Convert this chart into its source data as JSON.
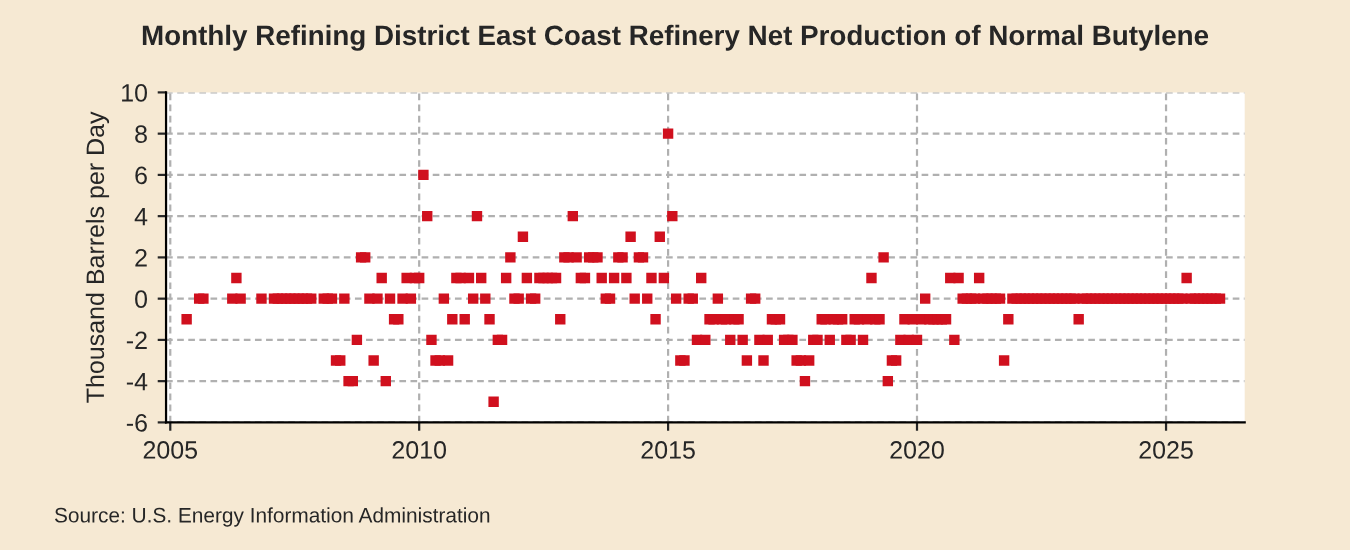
{
  "chart_data": {
    "type": "scatter",
    "title": "Monthly Refining District East Coast Refinery Net Production of Normal Butylene",
    "ylabel": "Thousand Barrels per Day",
    "annotations": [
      "Source: U.S. Energy Information Administration"
    ],
    "x": [
      "2005-05",
      "2005-06",
      "2005-07",
      "2005-08",
      "2005-09",
      "2005-10",
      "2005-11",
      "2005-12",
      "2006-01",
      "2006-02",
      "2006-03",
      "2006-04",
      "2006-05",
      "2006-06",
      "2006-07",
      "2006-08",
      "2006-09",
      "2006-10",
      "2006-11",
      "2006-12",
      "2007-01",
      "2007-02",
      "2007-03",
      "2007-04",
      "2007-05",
      "2007-06",
      "2007-07",
      "2007-08",
      "2007-09",
      "2007-10",
      "2007-11",
      "2007-12",
      "2008-01",
      "2008-02",
      "2008-03",
      "2008-04",
      "2008-05",
      "2008-06",
      "2008-07",
      "2008-08",
      "2008-09",
      "2008-10",
      "2008-11",
      "2008-12",
      "2009-01",
      "2009-02",
      "2009-03",
      "2009-04",
      "2009-05",
      "2009-06",
      "2009-07",
      "2009-08",
      "2009-09",
      "2009-10",
      "2009-11",
      "2009-12",
      "2010-01",
      "2010-02",
      "2010-03",
      "2010-04",
      "2010-05",
      "2010-06",
      "2010-07",
      "2010-08",
      "2010-09",
      "2010-10",
      "2010-11",
      "2010-12",
      "2011-01",
      "2011-02",
      "2011-03",
      "2011-04",
      "2011-05",
      "2011-06",
      "2011-07",
      "2011-08",
      "2011-09",
      "2011-10",
      "2011-11",
      "2011-12",
      "2012-01",
      "2012-02",
      "2012-03",
      "2012-04",
      "2012-05",
      "2012-06",
      "2012-07",
      "2012-08",
      "2012-09",
      "2012-10",
      "2012-11",
      "2012-12",
      "2013-01",
      "2013-02",
      "2013-03",
      "2013-04",
      "2013-05",
      "2013-06",
      "2013-07",
      "2013-08",
      "2013-09",
      "2013-10",
      "2013-11",
      "2013-12",
      "2014-01",
      "2014-02",
      "2014-03",
      "2014-04",
      "2014-05",
      "2014-06",
      "2014-07",
      "2014-08",
      "2014-09",
      "2014-10",
      "2014-11",
      "2014-12",
      "2015-01",
      "2015-02",
      "2015-03",
      "2015-04",
      "2015-05",
      "2015-06",
      "2015-07",
      "2015-08",
      "2015-09",
      "2015-10",
      "2015-11",
      "2015-12",
      "2016-01",
      "2016-02",
      "2016-03",
      "2016-04",
      "2016-05",
      "2016-06",
      "2016-07",
      "2016-08",
      "2016-09",
      "2016-10",
      "2016-11",
      "2016-12",
      "2017-01",
      "2017-02",
      "2017-03",
      "2017-04",
      "2017-05",
      "2017-06",
      "2017-07",
      "2017-08",
      "2017-09",
      "2017-10",
      "2017-11",
      "2017-12",
      "2018-01",
      "2018-02",
      "2018-03",
      "2018-04",
      "2018-05",
      "2018-06",
      "2018-07",
      "2018-08",
      "2018-09",
      "2018-10",
      "2018-11",
      "2018-12",
      "2019-01",
      "2019-02",
      "2019-03",
      "2019-04",
      "2019-05",
      "2019-06",
      "2019-07",
      "2019-08",
      "2019-09",
      "2019-10",
      "2019-11",
      "2019-12",
      "2020-01",
      "2020-02",
      "2020-03",
      "2020-04",
      "2020-05",
      "2020-06",
      "2020-07",
      "2020-08",
      "2020-09",
      "2020-10",
      "2020-11",
      "2020-12",
      "2021-01",
      "2021-02",
      "2021-03",
      "2021-04",
      "2021-05",
      "2021-06",
      "2021-07",
      "2021-08",
      "2021-09",
      "2021-10",
      "2021-11",
      "2021-12",
      "2022-01",
      "2022-02",
      "2022-03",
      "2022-04",
      "2022-05",
      "2022-06",
      "2022-07",
      "2022-08",
      "2022-09",
      "2022-10",
      "2022-11",
      "2022-12",
      "2023-01",
      "2023-02",
      "2023-03",
      "2023-04",
      "2023-05",
      "2023-06",
      "2023-07",
      "2023-08",
      "2023-09",
      "2023-10",
      "2023-11",
      "2023-12",
      "2024-01",
      "2024-02",
      "2024-03",
      "2024-04",
      "2024-05",
      "2024-06",
      "2024-07",
      "2024-08",
      "2024-09",
      "2024-10",
      "2024-11",
      "2024-12",
      "2025-01",
      "2025-02",
      "2025-03",
      "2025-04",
      "2025-05",
      "2025-06",
      "2025-07",
      "2025-08",
      "2025-09",
      "2025-10",
      "2025-11",
      "2025-12",
      "2026-01",
      "2026-02"
    ],
    "series": [
      {
        "color": "#d0101e",
        "values": [
          -1,
          null,
          null,
          0,
          0,
          null,
          null,
          null,
          null,
          null,
          null,
          0,
          1,
          0,
          null,
          null,
          null,
          null,
          0,
          null,
          null,
          0,
          0,
          0,
          0,
          0,
          0,
          0,
          0,
          0,
          0,
          null,
          null,
          0,
          0,
          0,
          -3,
          -3,
          0,
          -4,
          -4,
          -2,
          2,
          2,
          0,
          -3,
          0,
          1,
          -4,
          0,
          -1,
          -1,
          0,
          1,
          0,
          1,
          1,
          6,
          4,
          -2,
          -3,
          -3,
          0,
          -3,
          -1,
          1,
          1,
          -1,
          1,
          0,
          4,
          1,
          0,
          -1,
          -5,
          -2,
          -2,
          1,
          2,
          0,
          0,
          3,
          1,
          0,
          0,
          1,
          1,
          1,
          1,
          1,
          -1,
          2,
          2,
          4,
          2,
          1,
          1,
          2,
          2,
          2,
          1,
          0,
          0,
          1,
          2,
          2,
          1,
          3,
          0,
          2,
          2,
          0,
          1,
          -1,
          3,
          1,
          8,
          4,
          0,
          -3,
          -3,
          0,
          0,
          -2,
          1,
          -2,
          -1,
          -1,
          0,
          -1,
          -1,
          -2,
          -1,
          -1,
          -2,
          -3,
          0,
          0,
          -2,
          -3,
          -2,
          -1,
          -1,
          -1,
          -2,
          -2,
          -2,
          -3,
          -3,
          -4,
          -3,
          -2,
          -2,
          -1,
          -1,
          -2,
          -1,
          -1,
          -1,
          -2,
          -2,
          -1,
          -1,
          -2,
          -1,
          1,
          -1,
          -1,
          2,
          -4,
          -3,
          -3,
          -2,
          -1,
          -2,
          -1,
          -2,
          -1,
          0,
          -1,
          -1,
          -1,
          -1,
          -1,
          1,
          -2,
          1,
          0,
          0,
          0,
          0,
          1,
          0,
          0,
          0,
          0,
          0,
          -3,
          -1,
          0,
          0,
          0,
          0,
          0,
          0,
          0,
          0,
          0,
          0,
          0,
          0,
          0,
          0,
          0,
          0,
          -1,
          0,
          0,
          0,
          0,
          0,
          0,
          0,
          0,
          0,
          0,
          0,
          0,
          0,
          0,
          0,
          0,
          0,
          0,
          0,
          0,
          0,
          0,
          0,
          0,
          0,
          1,
          0,
          0,
          0,
          0,
          0,
          0,
          0,
          0
        ]
      }
    ],
    "xlim": [
      "2004-12",
      "2026-08"
    ],
    "xticks": [
      "2005",
      "2010",
      "2015",
      "2020",
      "2025"
    ],
    "ylim": [
      -6,
      10
    ],
    "yticks": [
      -6,
      -4,
      -2,
      0,
      2,
      4,
      6,
      8,
      10
    ],
    "grid": true,
    "marker": "square"
  }
}
